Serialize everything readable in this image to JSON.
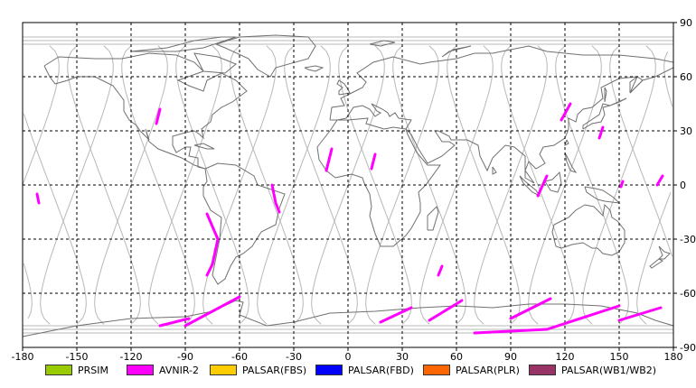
{
  "map": {
    "lon_ticks": [
      "-180",
      "-150",
      "-120",
      "-90",
      "-60",
      "-30",
      "0",
      "30",
      "60",
      "90",
      "120",
      "150",
      "180"
    ],
    "lat_ticks": [
      "90",
      "60",
      "30",
      "0",
      "-30",
      "-60",
      "-90"
    ],
    "lon_range": [
      -180,
      180
    ],
    "lat_range": [
      -90,
      90
    ],
    "grid": "dashed",
    "colors": {
      "coast": "#707070",
      "orbit": "#b8b8b8",
      "grid": "#000000",
      "frame": "#000000"
    }
  },
  "legend": [
    {
      "label": "PRSIM",
      "color": "#99cc00"
    },
    {
      "label": "AVNIR-2",
      "color": "#ff00ff"
    },
    {
      "label": "PALSAR(FBS)",
      "color": "#ffcc00"
    },
    {
      "label": "PALSAR(FBD)",
      "color": "#0000ff"
    },
    {
      "label": "PALSAR(PLR)",
      "color": "#ff6600"
    },
    {
      "label": "PALSAR(WB1/WB2)",
      "color": "#993366"
    }
  ],
  "acquisition_segments": [
    {
      "color": "#ff00ff",
      "points": [
        [
          -104,
          -78
        ],
        [
          -88,
          -74
        ]
      ]
    },
    {
      "color": "#ff00ff",
      "points": [
        [
          -90,
          -78
        ],
        [
          -60,
          -62
        ]
      ]
    },
    {
      "color": "#ff00ff",
      "points": [
        [
          -78,
          -16
        ],
        [
          -72,
          -30
        ],
        [
          -75,
          -44
        ],
        [
          -78,
          -50
        ]
      ]
    },
    {
      "color": "#ff00ff",
      "points": [
        [
          -42,
          0
        ],
        [
          -40,
          -10
        ],
        [
          -38,
          -15
        ]
      ]
    },
    {
      "color": "#ff00ff",
      "points": [
        [
          -106,
          34
        ],
        [
          -104,
          42
        ]
      ]
    },
    {
      "color": "#ff00ff",
      "points": [
        [
          -172,
          -5
        ],
        [
          -171,
          -10
        ]
      ]
    },
    {
      "color": "#ff00ff",
      "points": [
        [
          -12,
          8
        ],
        [
          -9,
          20
        ]
      ]
    },
    {
      "color": "#ff00ff",
      "points": [
        [
          13,
          9
        ],
        [
          15,
          17
        ]
      ]
    },
    {
      "color": "#ff00ff",
      "points": [
        [
          50,
          -50
        ],
        [
          52,
          -45
        ]
      ]
    },
    {
      "color": "#ff00ff",
      "points": [
        [
          18,
          -76
        ],
        [
          35,
          -68
        ]
      ]
    },
    {
      "color": "#ff00ff",
      "points": [
        [
          45,
          -75
        ],
        [
          63,
          -64
        ]
      ]
    },
    {
      "color": "#ff00ff",
      "points": [
        [
          70,
          -82
        ],
        [
          110,
          -80
        ],
        [
          150,
          -67
        ]
      ]
    },
    {
      "color": "#ff00ff",
      "points": [
        [
          90,
          -74
        ],
        [
          112,
          -63
        ]
      ]
    },
    {
      "color": "#ff00ff",
      "points": [
        [
          150,
          -75
        ],
        [
          173,
          -68
        ]
      ]
    },
    {
      "color": "#ff00ff",
      "points": [
        [
          118,
          36
        ],
        [
          123,
          45
        ]
      ]
    },
    {
      "color": "#ff00ff",
      "points": [
        [
          139,
          26
        ],
        [
          141,
          32
        ]
      ]
    },
    {
      "color": "#ff00ff",
      "points": [
        [
          105,
          -6
        ],
        [
          110,
          5
        ]
      ]
    },
    {
      "color": "#ff00ff",
      "points": [
        [
          151,
          -1
        ],
        [
          152,
          2
        ]
      ]
    },
    {
      "color": "#ff00ff",
      "points": [
        [
          171,
          0
        ],
        [
          174,
          5
        ]
      ]
    }
  ]
}
